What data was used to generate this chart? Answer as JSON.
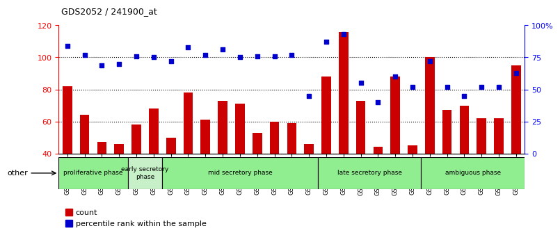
{
  "title": "GDS2052 / 241900_at",
  "samples": [
    "GSM109814",
    "GSM109815",
    "GSM109816",
    "GSM109817",
    "GSM109820",
    "GSM109821",
    "GSM109822",
    "GSM109824",
    "GSM109825",
    "GSM109826",
    "GSM109827",
    "GSM109828",
    "GSM109829",
    "GSM109830",
    "GSM109831",
    "GSM109834",
    "GSM109835",
    "GSM109836",
    "GSM109837",
    "GSM109838",
    "GSM109839",
    "GSM109818",
    "GSM109819",
    "GSM109823",
    "GSM109832",
    "GSM109833",
    "GSM109840"
  ],
  "count": [
    82,
    64,
    47,
    46,
    58,
    68,
    50,
    78,
    61,
    73,
    71,
    53,
    60,
    59,
    46,
    88,
    116,
    73,
    44,
    88,
    45,
    100,
    67,
    70,
    62,
    62,
    95
  ],
  "percentile": [
    84,
    77,
    69,
    70,
    76,
    75,
    72,
    83,
    77,
    81,
    75,
    76,
    76,
    77,
    45,
    87,
    93,
    55,
    40,
    60,
    52,
    72,
    52,
    45,
    52,
    52,
    63
  ],
  "phases": [
    {
      "label": "proliferative phase",
      "start": 0,
      "end": 4,
      "color": "#90EE90"
    },
    {
      "label": "early secretory\nphase",
      "start": 4,
      "end": 6,
      "color": "#c8f0c8"
    },
    {
      "label": "mid secretory phase",
      "start": 6,
      "end": 15,
      "color": "#90EE90"
    },
    {
      "label": "late secretory phase",
      "start": 15,
      "end": 21,
      "color": "#90EE90"
    },
    {
      "label": "ambiguous phase",
      "start": 21,
      "end": 27,
      "color": "#90EE90"
    }
  ],
  "ylim_left": [
    40,
    120
  ],
  "yticks_left": [
    40,
    60,
    80,
    100,
    120
  ],
  "yticks_right_vals": [
    0,
    25,
    50,
    75,
    100
  ],
  "yticks_right_labels": [
    "0",
    "25",
    "50",
    "75",
    "100%"
  ],
  "bar_color": "#CC0000",
  "dot_color": "#0000CC"
}
